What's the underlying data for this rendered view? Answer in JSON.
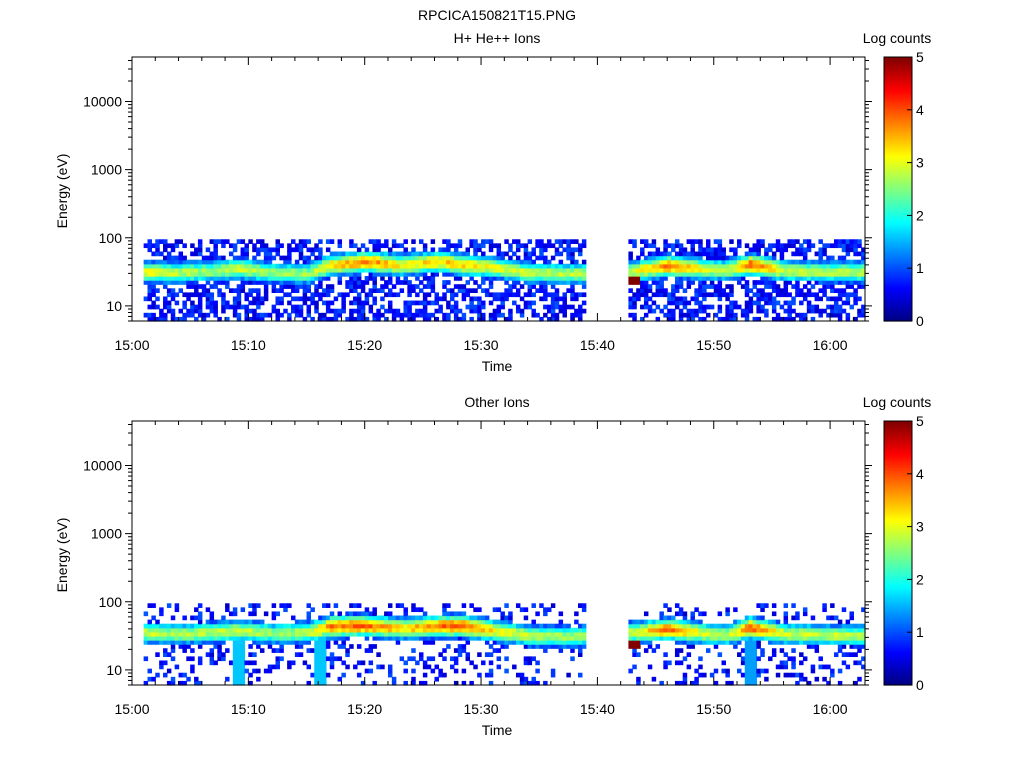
{
  "figure_title": "RPCICA150821T15.PNG",
  "colors": {
    "axis": "#000000",
    "background": "#ffffff"
  },
  "chart_data": [
    {
      "type": "heatmap",
      "title": "H+ He++ Ions",
      "xlabel": "Time",
      "ylabel": "Energy (eV)",
      "xlim": [
        "15:00",
        "16:03"
      ],
      "x_ticks": [
        "15:00",
        "15:10",
        "15:20",
        "15:30",
        "15:40",
        "15:50",
        "16:00"
      ],
      "y_scale": "log",
      "ylim": [
        6,
        45000
      ],
      "y_ticks": [
        10,
        100,
        1000,
        10000
      ],
      "y_tick_labels": [
        "10",
        "100",
        "1000",
        "10000"
      ],
      "colorbar": {
        "label": "Log counts",
        "range": [
          0,
          5
        ],
        "ticks": [
          "0",
          "1",
          "2",
          "3",
          "4",
          "5"
        ],
        "colormap": "jet"
      },
      "data_gaps": [
        [
          "15:39",
          "15:42.5"
        ]
      ],
      "band": [
        [
          "15:01",
          32,
          3.1
        ],
        [
          "15:04",
          31,
          2.8
        ],
        [
          "15:07",
          33,
          2.6
        ],
        [
          "15:09",
          36,
          3.0
        ],
        [
          "15:12",
          31,
          2.6
        ],
        [
          "15:15",
          30,
          2.7
        ],
        [
          "15:17",
          40,
          3.3
        ],
        [
          "15:20",
          45,
          3.8
        ],
        [
          "15:23",
          40,
          3.2
        ],
        [
          "15:26",
          45,
          3.4
        ],
        [
          "15:28",
          41,
          3.4
        ],
        [
          "15:31",
          37,
          3.0
        ],
        [
          "15:34",
          31,
          2.8
        ],
        [
          "15:38",
          30,
          2.8
        ],
        [
          "15:43",
          33,
          2.9
        ],
        [
          "15:46",
          39,
          3.8
        ],
        [
          "15:49",
          35,
          3.0
        ],
        [
          "15:51",
          34,
          2.8
        ],
        [
          "15:53",
          41,
          3.9
        ],
        [
          "15:56",
          33,
          2.9
        ],
        [
          "15:59",
          32,
          2.8
        ],
        [
          "16:02",
          32,
          2.8
        ]
      ],
      "hotspots": [
        [
          "15:43",
          24,
          5.0
        ]
      ]
    },
    {
      "type": "heatmap",
      "title": "Other Ions",
      "xlabel": "Time",
      "ylabel": "Energy (eV)",
      "xlim": [
        "15:00",
        "16:03"
      ],
      "x_ticks": [
        "15:00",
        "15:10",
        "15:20",
        "15:30",
        "15:40",
        "15:50",
        "16:00"
      ],
      "y_scale": "log",
      "ylim": [
        6,
        45000
      ],
      "y_ticks": [
        10,
        100,
        1000,
        10000
      ],
      "y_tick_labels": [
        "10",
        "100",
        "1000",
        "10000"
      ],
      "colorbar": {
        "label": "Log counts",
        "range": [
          0,
          5
        ],
        "ticks": [
          "0",
          "1",
          "2",
          "3",
          "4",
          "5"
        ],
        "colormap": "jet"
      },
      "data_gaps": [
        [
          "15:39",
          "15:42.5"
        ]
      ],
      "band": [
        [
          "15:01",
          35,
          2.9
        ],
        [
          "15:04",
          34,
          2.7
        ],
        [
          "15:07",
          36,
          2.8
        ],
        [
          "15:09",
          38,
          2.9
        ],
        [
          "15:12",
          35,
          2.6
        ],
        [
          "15:15",
          36,
          2.8
        ],
        [
          "15:17",
          44,
          3.8
        ],
        [
          "15:20",
          45,
          3.9
        ],
        [
          "15:23",
          41,
          3.3
        ],
        [
          "15:26",
          44,
          3.8
        ],
        [
          "15:28",
          45,
          4.1
        ],
        [
          "15:31",
          38,
          3.2
        ],
        [
          "15:34",
          32,
          2.8
        ],
        [
          "15:38",
          31,
          2.7
        ],
        [
          "15:43",
          36,
          2.9
        ],
        [
          "15:46",
          40,
          3.9
        ],
        [
          "15:49",
          35,
          3.0
        ],
        [
          "15:51",
          33,
          2.7
        ],
        [
          "15:53",
          42,
          4.0
        ],
        [
          "15:56",
          34,
          2.9
        ],
        [
          "15:59",
          33,
          2.8
        ],
        [
          "16:02",
          32,
          2.8
        ]
      ],
      "hotspots": [
        [
          "15:43",
          24,
          5.0
        ]
      ],
      "vertical_streaks": [
        [
          "15:09",
          1.6
        ],
        [
          "15:16",
          1.6
        ],
        [
          "15:53",
          1.4
        ]
      ]
    }
  ]
}
